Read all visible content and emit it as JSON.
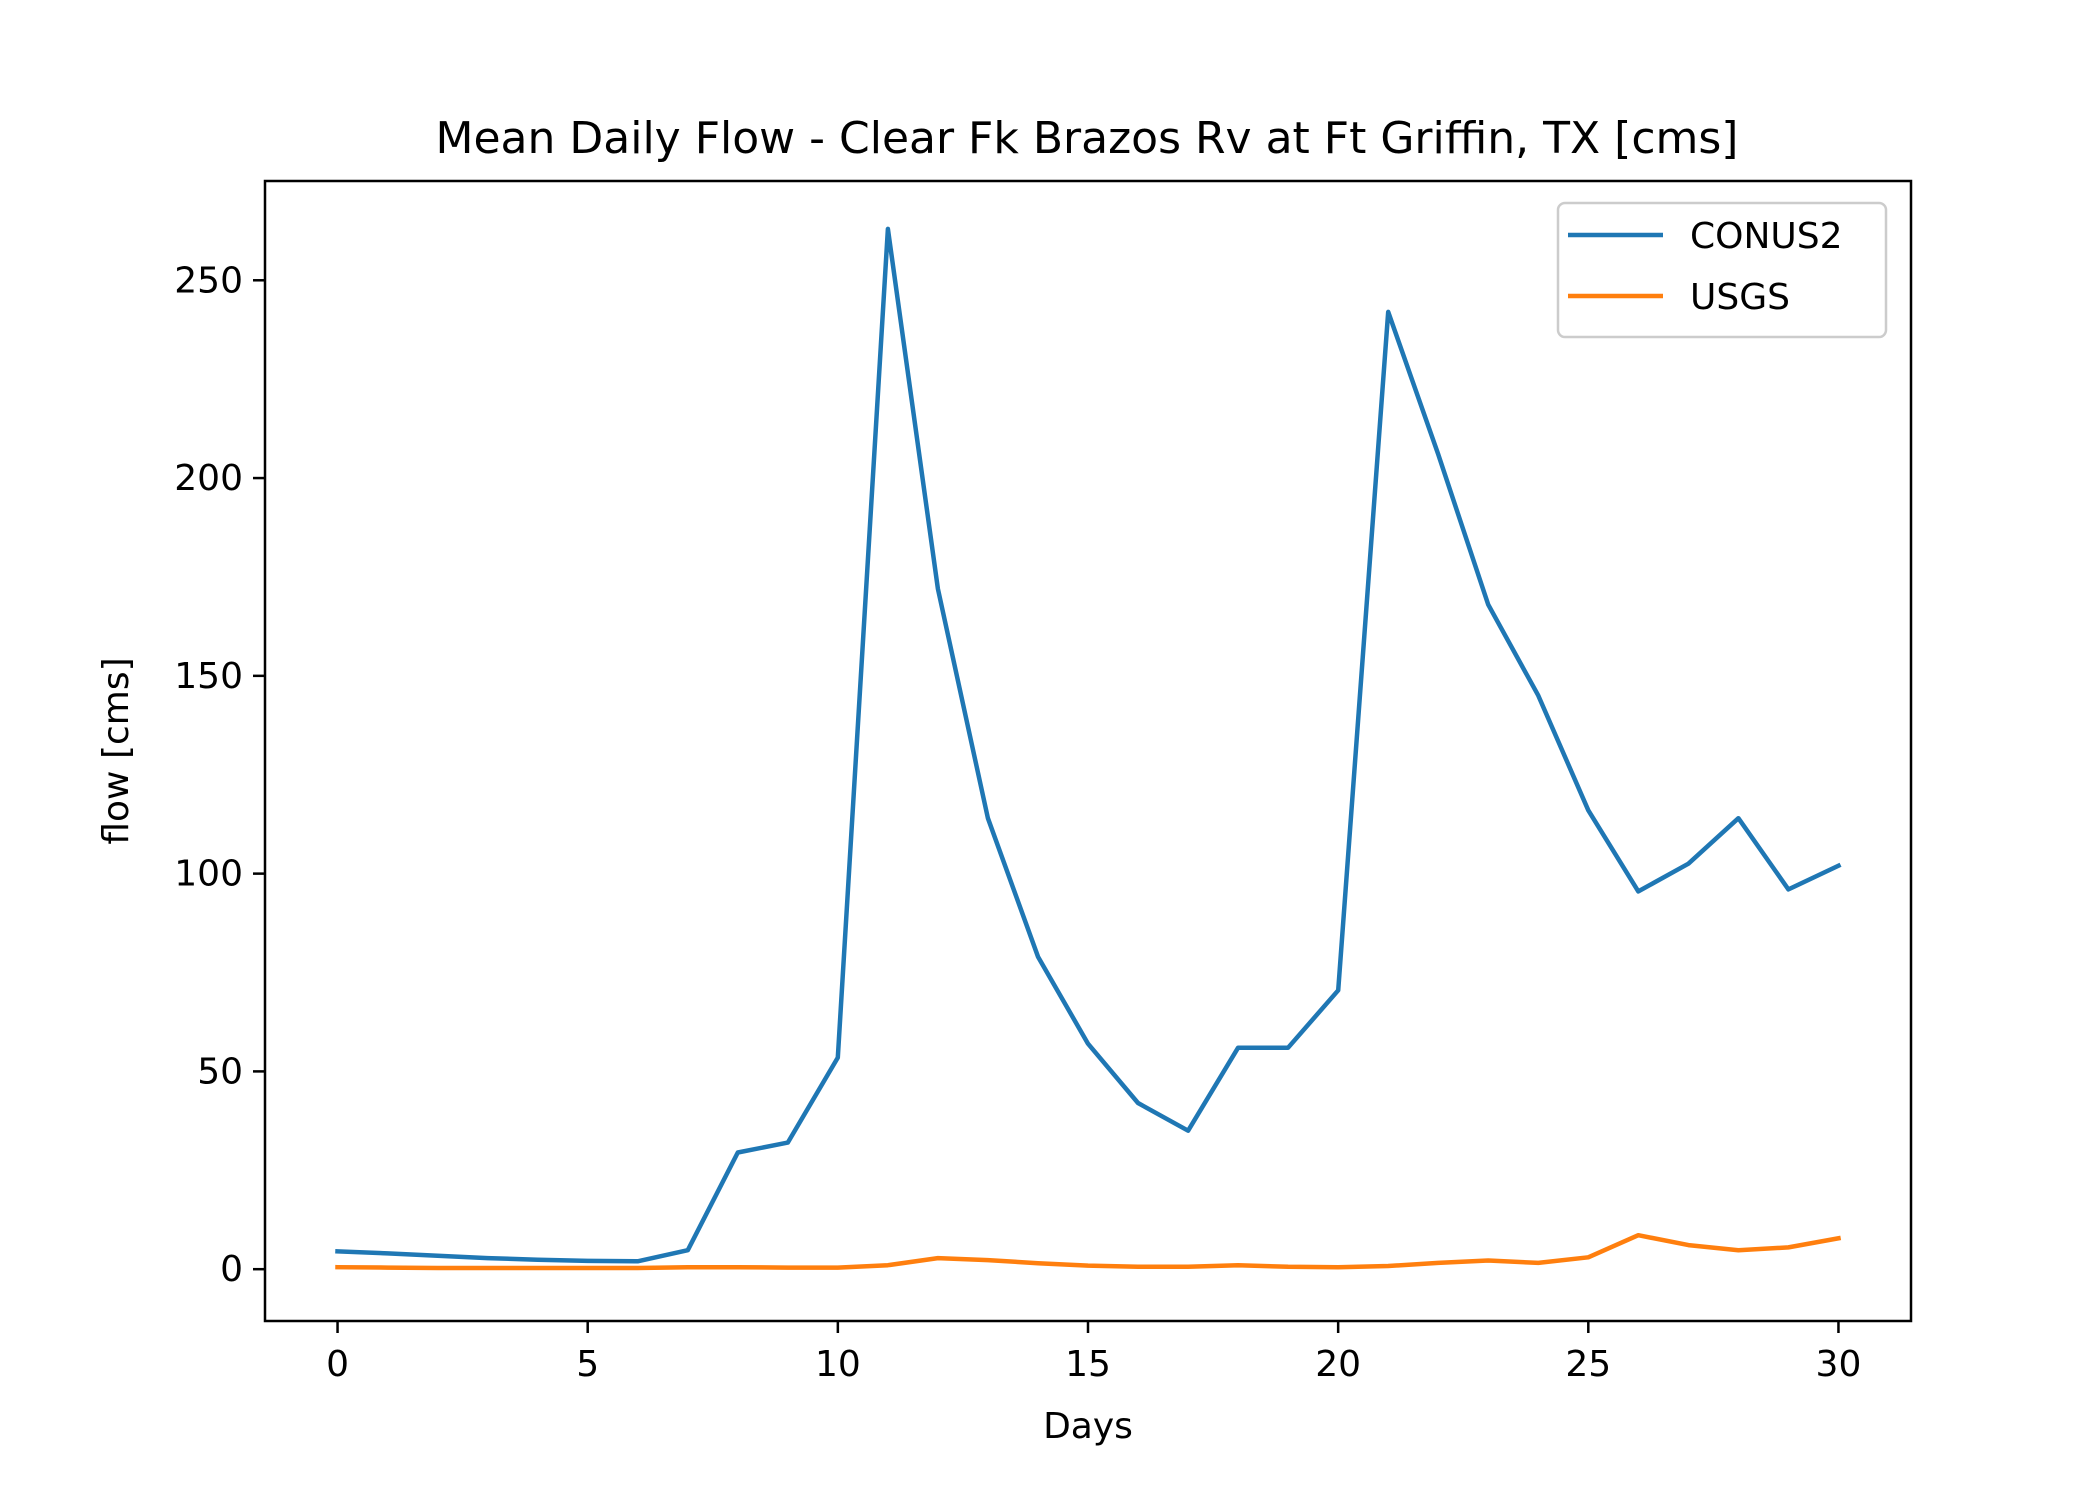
{
  "chart_data": {
    "type": "line",
    "title": "Mean Daily Flow - Clear Fk Brazos Rv at Ft Griffin, TX [cms]",
    "xlabel": "Days",
    "ylabel": "flow [cms]",
    "xlim": [
      -1.45,
      31.45
    ],
    "ylim": [
      -13.1,
      275.1
    ],
    "xticks": [
      0,
      5,
      10,
      15,
      20,
      25,
      30
    ],
    "yticks": [
      0,
      50,
      100,
      150,
      200,
      250
    ],
    "grid": false,
    "legend_position": "top-right",
    "x": [
      0,
      1,
      2,
      3,
      4,
      5,
      6,
      7,
      8,
      9,
      10,
      11,
      12,
      13,
      14,
      15,
      16,
      17,
      18,
      19,
      20,
      21,
      22,
      23,
      24,
      25,
      26,
      27,
      28,
      29,
      30
    ],
    "series": [
      {
        "name": "CONUS2",
        "color": "#1f77b4",
        "values": [
          4.5,
          4.0,
          3.4,
          2.8,
          2.4,
          2.1,
          2.0,
          4.8,
          29.5,
          32.0,
          53.5,
          263.0,
          172.0,
          114.0,
          79.0,
          57.0,
          42.0,
          35.0,
          56.0,
          56.0,
          70.5,
          242.0,
          206.0,
          168.0,
          145.0,
          116.0,
          95.5,
          102.5,
          114.0,
          96.0,
          102.0
        ]
      },
      {
        "name": "USGS",
        "color": "#ff7f0e",
        "values": [
          0.5,
          0.4,
          0.3,
          0.3,
          0.3,
          0.3,
          0.3,
          0.5,
          0.5,
          0.4,
          0.4,
          1.0,
          2.8,
          2.3,
          1.5,
          0.9,
          0.6,
          0.6,
          1.0,
          0.6,
          0.5,
          0.8,
          1.6,
          2.2,
          1.6,
          3.0,
          8.6,
          6.1,
          4.8,
          5.5,
          7.8
        ]
      }
    ]
  }
}
